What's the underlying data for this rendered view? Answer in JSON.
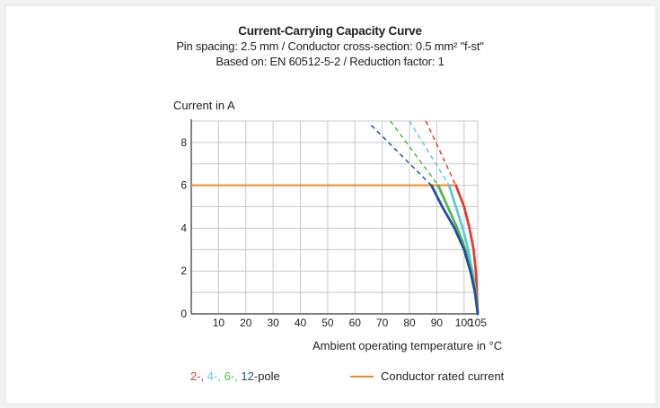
{
  "chart_data": {
    "type": "line",
    "title": "Current-Carrying Capacity Curve",
    "subtitle_1": "Pin spacing: 2.5 mm / Conductor cross-section: 0.5 mm² \"f-st\"",
    "subtitle_2": "Based on: EN 60512-5-2 / Reduction factor: 1",
    "ylabel": "Current in A",
    "xlabel": "Ambient operating temperature in °C",
    "xlim": [
      0,
      105
    ],
    "ylim": [
      0,
      9
    ],
    "xticks": [
      10,
      20,
      30,
      40,
      50,
      60,
      70,
      80,
      90,
      100,
      105
    ],
    "yticks": [
      0,
      2,
      4,
      6,
      8
    ],
    "grid": true,
    "rated_current": {
      "name": "Conductor rated current",
      "value": 6,
      "x": [
        0,
        97
      ],
      "color": "#f08a24"
    },
    "series": [
      {
        "name": "2",
        "color": "#e53b2e",
        "dashed": [
          [
            86,
            9
          ],
          [
            97,
            6
          ]
        ],
        "solid": [
          [
            97,
            6
          ],
          [
            100,
            5
          ],
          [
            102,
            4
          ],
          [
            103.5,
            3
          ],
          [
            104.3,
            2
          ],
          [
            104.7,
            1
          ],
          [
            105,
            0
          ]
        ]
      },
      {
        "name": "4",
        "color": "#5ec8d8",
        "dashed": [
          [
            80,
            9
          ],
          [
            94.5,
            6
          ]
        ],
        "solid": [
          [
            94.5,
            6
          ],
          [
            97,
            5
          ],
          [
            99.5,
            4
          ],
          [
            101.5,
            3
          ],
          [
            103,
            2
          ],
          [
            104.3,
            1
          ],
          [
            105,
            0
          ]
        ]
      },
      {
        "name": "6",
        "color": "#52b848",
        "dashed": [
          [
            73,
            9
          ],
          [
            90.5,
            6
          ]
        ],
        "solid": [
          [
            90.5,
            6
          ],
          [
            94,
            5
          ],
          [
            97.5,
            4
          ],
          [
            100.5,
            3
          ],
          [
            102.5,
            2
          ],
          [
            104.2,
            1
          ],
          [
            105,
            0
          ]
        ]
      },
      {
        "name": "12",
        "color": "#1f4fa0",
        "dashed": [
          [
            66,
            8.8
          ],
          [
            88,
            6
          ]
        ],
        "solid": [
          [
            88,
            6
          ],
          [
            92,
            5
          ],
          [
            96.5,
            4
          ],
          [
            100,
            3
          ],
          [
            102.3,
            2
          ],
          [
            104,
            1
          ],
          [
            105,
            0
          ]
        ]
      }
    ]
  },
  "legend": {
    "poles": [
      {
        "label": "2",
        "color": "#e53b2e"
      },
      {
        "label": "4",
        "color": "#5ec8d8"
      },
      {
        "label": "6",
        "color": "#52b848"
      },
      {
        "label": "12",
        "color": "#1f4fa0"
      }
    ],
    "poles_suffix": "pole",
    "rated_label": "Conductor rated current"
  }
}
